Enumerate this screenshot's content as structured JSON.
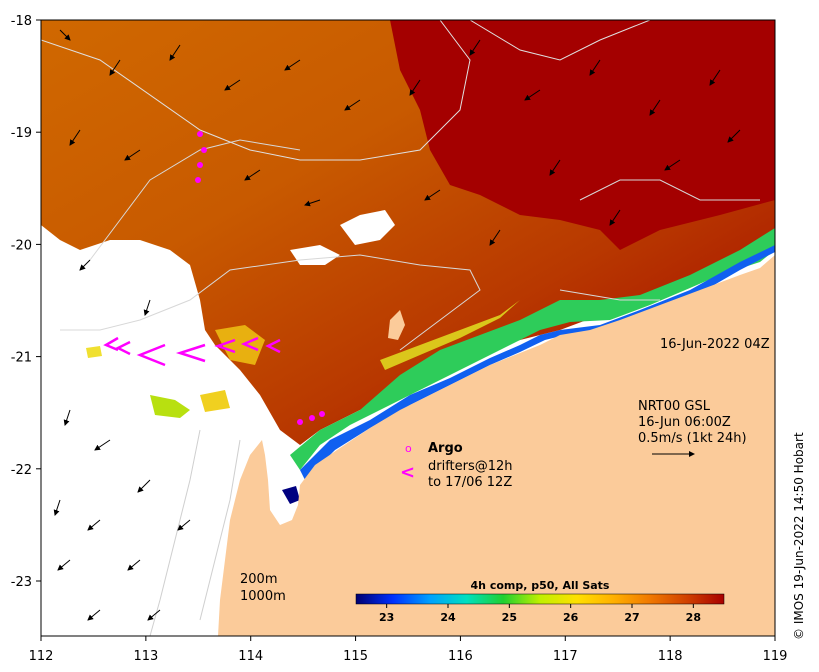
{
  "map": {
    "x_ticks": [
      "112",
      "113",
      "114",
      "115",
      "116",
      "117",
      "118",
      "119"
    ],
    "y_ticks": [
      "-18",
      "-19",
      "-20",
      "-21",
      "-22",
      "-23"
    ],
    "date_label": "16-Jun-2022 04Z",
    "current_source": "NRT00 GSL",
    "current_time": "16-Jun 06:00Z",
    "current_scale": "0.5m/s (1kt 24h)",
    "legend_argo": "Argo",
    "legend_drifters_line1": "drifters@12h",
    "legend_drifters_line2": "to 17/06 12Z",
    "argo_symbol": "o",
    "drifter_symbol": "<",
    "isobath_200": "200m",
    "isobath_1000": "1000m",
    "copyright": "© IMOS 19-Jun-2022 14:50 Hobart",
    "colors": {
      "land": "#fbcb9a",
      "warm_sst": "#a80000",
      "mid_sst": "#d86a00",
      "cool_sst": "#1fbf5a",
      "coastal_cold": "#0040e0",
      "drifter": "#ff00ff"
    }
  },
  "colorbar": {
    "title": "4h comp, p50, All Sats",
    "ticks": [
      "23",
      "24",
      "25",
      "26",
      "27",
      "28"
    ],
    "vmin": 22.5,
    "vmax": 28.5,
    "colors": [
      "#000070",
      "#0030ff",
      "#00a0ff",
      "#00e0c0",
      "#20d030",
      "#c0f000",
      "#ffe000",
      "#ffb000",
      "#f07800",
      "#d04000",
      "#a80000"
    ]
  }
}
